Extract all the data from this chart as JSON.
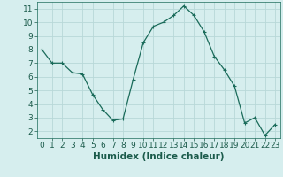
{
  "x": [
    0,
    1,
    2,
    3,
    4,
    5,
    6,
    7,
    8,
    9,
    10,
    11,
    12,
    13,
    14,
    15,
    16,
    17,
    18,
    19,
    20,
    21,
    22,
    23
  ],
  "y": [
    8.0,
    7.0,
    7.0,
    6.3,
    6.2,
    4.7,
    3.6,
    2.8,
    2.9,
    5.8,
    8.5,
    9.7,
    10.0,
    10.5,
    11.2,
    10.5,
    9.3,
    7.5,
    6.5,
    5.3,
    2.6,
    3.0,
    1.7,
    2.5
  ],
  "line_color": "#1a6b5a",
  "marker": "+",
  "marker_size": 3,
  "marker_lw": 0.8,
  "background_color": "#d6eeee",
  "grid_color": "#b8d8d8",
  "xlabel": "Humidex (Indice chaleur)",
  "xlim": [
    -0.5,
    23.5
  ],
  "ylim": [
    1.5,
    11.5
  ],
  "yticks": [
    2,
    3,
    4,
    5,
    6,
    7,
    8,
    9,
    10,
    11
  ],
  "xticks": [
    0,
    1,
    2,
    3,
    4,
    5,
    6,
    7,
    8,
    9,
    10,
    11,
    12,
    13,
    14,
    15,
    16,
    17,
    18,
    19,
    20,
    21,
    22,
    23
  ],
  "xlabel_fontsize": 7.5,
  "tick_fontsize": 6.5,
  "text_color": "#1a5a4a",
  "spine_color": "#1a6b5a",
  "line_width": 0.9
}
